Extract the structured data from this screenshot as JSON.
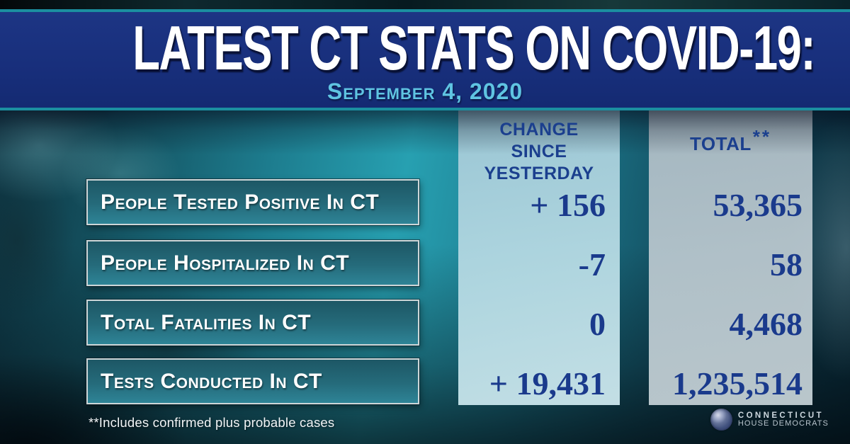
{
  "header": {
    "title": "LATEST CT STATS ON COVID-19:",
    "date": "September 4, 2020"
  },
  "columns": {
    "change": {
      "lines": [
        "CHANGE",
        "SINCE",
        "YESTERDAY"
      ]
    },
    "total": {
      "label": "TOTAL",
      "marker": "**"
    }
  },
  "rows": [
    {
      "label": "People Tested Positive In CT",
      "change": "+ 156",
      "total": "53,365"
    },
    {
      "label": "People Hospitalized In CT",
      "change": "-7",
      "total": "58"
    },
    {
      "label": "Total Fatalities In CT",
      "change": "0",
      "total": "4,468"
    },
    {
      "label": "Tests Conducted In CT",
      "change": "+ 19,431",
      "total": "1,235,514"
    }
  ],
  "footnote": "**Includes confirmed plus probable cases",
  "logo": {
    "line1": "CONNECTICUT",
    "line2": "HOUSE DEMOCRATS"
  },
  "palette": {
    "header_navy": "#182f7c",
    "teal_accent_line": "#1b8fa0",
    "date_blue": "#5fc4e2",
    "value_navy": "#1a3a8c",
    "change_column_bg": "#b7dbe4",
    "total_column_bg": "#bac8cf",
    "stat_box_teal": "#256b7b",
    "stat_box_border": "#ccd6d8"
  }
}
